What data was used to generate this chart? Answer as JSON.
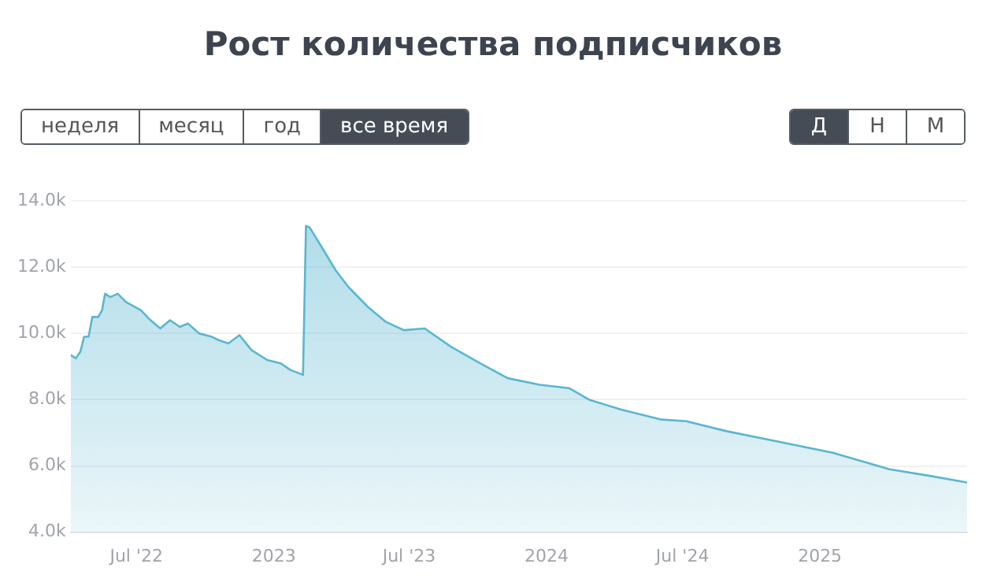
{
  "chart_data": {
    "type": "area",
    "title": "Рост количества подписчиков",
    "annotations": [
      "неделя",
      "месяц",
      "год",
      "все время",
      "Д",
      "Н",
      "М"
    ],
    "x": [
      "2022-04-04",
      "2022-04-11",
      "2022-04-17",
      "2022-04-22",
      "2022-04-28",
      "2022-05-03",
      "2022-05-11",
      "2022-05-16",
      "2022-05-20",
      "2022-05-27",
      "2022-06-06",
      "2022-06-17",
      "2022-07-07",
      "2022-07-20",
      "2022-08-02",
      "2022-08-15",
      "2022-08-28",
      "2022-09-08",
      "2022-09-23",
      "2022-10-10",
      "2022-10-19",
      "2022-11-01",
      "2022-11-16",
      "2022-12-02",
      "2022-12-23",
      "2023-01-10",
      "2023-01-23",
      "2023-02-09",
      "2023-02-13",
      "2023-02-18",
      "2023-03-05",
      "2023-03-25",
      "2023-04-11",
      "2023-05-07",
      "2023-05-31",
      "2023-06-24",
      "2023-07-22",
      "2023-08-26",
      "2023-10-04",
      "2023-11-10",
      "2023-12-23",
      "2024-01-31",
      "2024-02-27",
      "2024-04-10",
      "2024-06-03",
      "2024-07-06",
      "2024-08-29",
      "2024-11-13",
      "2025-01-18",
      "2025-04-04",
      "2025-05-28",
      "2025-07-17"
    ],
    "series": [
      {
        "color": "#5ab6d0",
        "values": [
          9.35,
          9.25,
          9.45,
          9.9,
          9.9,
          10.5,
          10.5,
          10.7,
          11.2,
          11.1,
          11.2,
          10.95,
          10.7,
          10.4,
          10.15,
          10.4,
          10.2,
          10.3,
          10.0,
          9.9,
          9.8,
          9.7,
          9.95,
          9.5,
          9.2,
          9.1,
          8.9,
          8.75,
          13.25,
          13.2,
          12.65,
          11.9,
          11.4,
          10.8,
          10.35,
          10.1,
          10.15,
          9.6,
          9.1,
          8.65,
          8.45,
          8.35,
          8.0,
          7.7,
          7.4,
          7.35,
          7.05,
          6.7,
          6.4,
          5.9,
          5.7,
          5.5
        ]
      }
    ],
    "xlim": [
      "2022-04-04",
      "2025-07-17"
    ],
    "xticks": [
      {
        "value": "2022-07-01",
        "label": "Jul '22"
      },
      {
        "value": "2023-01-01",
        "label": "2023"
      },
      {
        "value": "2023-07-01",
        "label": "Jul '23"
      },
      {
        "value": "2024-01-01",
        "label": "2024"
      },
      {
        "value": "2024-07-01",
        "label": "Jul '24"
      },
      {
        "value": "2025-01-01",
        "label": "2025"
      }
    ],
    "ylim": [
      4,
      14
    ],
    "yticks": [
      {
        "value": 4,
        "label": "4.0k"
      },
      {
        "value": 6,
        "label": "6.0k"
      },
      {
        "value": 8,
        "label": "8.0k"
      },
      {
        "value": 10,
        "label": "10.0k"
      },
      {
        "value": 12,
        "label": "12.0k"
      },
      {
        "value": 14,
        "label": "14.0k"
      }
    ],
    "grid": "y",
    "legend": false,
    "marker": "none"
  }
}
